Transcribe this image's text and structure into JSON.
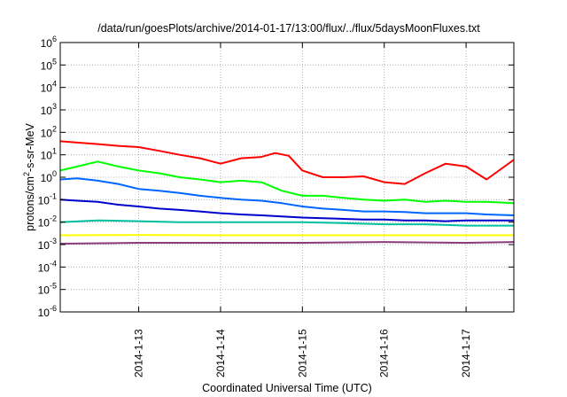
{
  "chart_data": {
    "type": "line",
    "title": "/data/run/goesPlots/archive/2014-01-17/13:00/flux/../flux/5daysMoonFluxes.txt",
    "xlabel": "Coordinated Universal Time (UTC)",
    "ylabel": "protons/cm²-s-sr-MeV",
    "ylabel_parts": {
      "a": "protons/cm",
      "sup": "2",
      "b": "-s-sr-MeV"
    },
    "y_scale": "log",
    "ylim": [
      1e-06,
      1000000.0
    ],
    "y_ticks": [
      {
        "value": 1e-06,
        "base": "10",
        "exp": "-6"
      },
      {
        "value": 1e-05,
        "base": "10",
        "exp": "-5"
      },
      {
        "value": 0.0001,
        "base": "10",
        "exp": "-4"
      },
      {
        "value": 0.001,
        "base": "10",
        "exp": "-3"
      },
      {
        "value": 0.01,
        "base": "10",
        "exp": "-2"
      },
      {
        "value": 0.1,
        "base": "10",
        "exp": "-1"
      },
      {
        "value": 1.0,
        "base": "10",
        "exp": "0"
      },
      {
        "value": 10.0,
        "base": "10",
        "exp": "1"
      },
      {
        "value": 100.0,
        "base": "10",
        "exp": "2"
      },
      {
        "value": 1000.0,
        "base": "10",
        "exp": "3"
      },
      {
        "value": 10000.0,
        "base": "10",
        "exp": "4"
      },
      {
        "value": 100000.0,
        "base": "10",
        "exp": "5"
      },
      {
        "value": 1000000.0,
        "base": "10",
        "exp": "6"
      }
    ],
    "xlim": [
      "2014-01-12T01:00",
      "2014-01-17T14:00"
    ],
    "x_ticks": [
      {
        "value": "2014-01-13T00:00",
        "label": "2014-1-13"
      },
      {
        "value": "2014-01-14T00:00",
        "label": "2014-1-14"
      },
      {
        "value": "2014-01-15T00:00",
        "label": "2014-1-15"
      },
      {
        "value": "2014-01-16T00:00",
        "label": "2014-1-16"
      },
      {
        "value": "2014-01-17T00:00",
        "label": "2014-1-17"
      }
    ],
    "grid": true,
    "series": [
      {
        "color": "#ff0000",
        "x": [
          "2014-01-12T01:00",
          "2014-01-12T06:00",
          "2014-01-12T12:00",
          "2014-01-12T18:00",
          "2014-01-13T00:00",
          "2014-01-13T06:00",
          "2014-01-13T12:00",
          "2014-01-13T18:00",
          "2014-01-14T00:00",
          "2014-01-14T06:00",
          "2014-01-14T12:00",
          "2014-01-14T16:00",
          "2014-01-14T20:00",
          "2014-01-15T00:00",
          "2014-01-15T06:00",
          "2014-01-15T12:00",
          "2014-01-15T18:00",
          "2014-01-16T00:00",
          "2014-01-16T06:00",
          "2014-01-16T12:00",
          "2014-01-16T18:00",
          "2014-01-17T00:00",
          "2014-01-17T06:00",
          "2014-01-17T14:00"
        ],
        "values": [
          40,
          35,
          30,
          25,
          22,
          15,
          10,
          7,
          4,
          7,
          8,
          12,
          9,
          2,
          1,
          1,
          1.1,
          0.6,
          0.5,
          1.5,
          4,
          3,
          0.8,
          6
        ]
      },
      {
        "color": "#00ff00",
        "x": [
          "2014-01-12T01:00",
          "2014-01-12T06:00",
          "2014-01-12T12:00",
          "2014-01-12T18:00",
          "2014-01-13T00:00",
          "2014-01-13T06:00",
          "2014-01-13T12:00",
          "2014-01-13T18:00",
          "2014-01-14T00:00",
          "2014-01-14T06:00",
          "2014-01-14T12:00",
          "2014-01-14T18:00",
          "2014-01-15T00:00",
          "2014-01-15T06:00",
          "2014-01-15T12:00",
          "2014-01-15T18:00",
          "2014-01-16T00:00",
          "2014-01-16T06:00",
          "2014-01-16T12:00",
          "2014-01-16T18:00",
          "2014-01-17T00:00",
          "2014-01-17T06:00",
          "2014-01-17T14:00"
        ],
        "values": [
          2,
          3,
          5,
          3,
          2,
          1.5,
          1,
          0.8,
          0.6,
          0.7,
          0.6,
          0.25,
          0.15,
          0.15,
          0.12,
          0.1,
          0.09,
          0.1,
          0.08,
          0.09,
          0.08,
          0.08,
          0.07
        ]
      },
      {
        "color": "#0066ff",
        "x": [
          "2014-01-12T01:00",
          "2014-01-12T06:00",
          "2014-01-12T12:00",
          "2014-01-12T18:00",
          "2014-01-13T00:00",
          "2014-01-13T06:00",
          "2014-01-13T12:00",
          "2014-01-13T18:00",
          "2014-01-14T00:00",
          "2014-01-14T06:00",
          "2014-01-14T12:00",
          "2014-01-14T18:00",
          "2014-01-15T00:00",
          "2014-01-15T06:00",
          "2014-01-15T12:00",
          "2014-01-15T18:00",
          "2014-01-16T00:00",
          "2014-01-16T06:00",
          "2014-01-16T12:00",
          "2014-01-16T18:00",
          "2014-01-17T00:00",
          "2014-01-17T06:00",
          "2014-01-17T14:00"
        ],
        "values": [
          0.8,
          0.9,
          0.7,
          0.5,
          0.3,
          0.25,
          0.2,
          0.15,
          0.12,
          0.1,
          0.09,
          0.07,
          0.05,
          0.04,
          0.035,
          0.03,
          0.03,
          0.028,
          0.025,
          0.025,
          0.025,
          0.022,
          0.02
        ]
      },
      {
        "color": "#0000cc",
        "x": [
          "2014-01-12T01:00",
          "2014-01-12T06:00",
          "2014-01-12T12:00",
          "2014-01-12T18:00",
          "2014-01-13T00:00",
          "2014-01-13T06:00",
          "2014-01-13T12:00",
          "2014-01-13T18:00",
          "2014-01-14T00:00",
          "2014-01-14T06:00",
          "2014-01-14T12:00",
          "2014-01-14T18:00",
          "2014-01-15T00:00",
          "2014-01-15T06:00",
          "2014-01-15T12:00",
          "2014-01-15T18:00",
          "2014-01-16T00:00",
          "2014-01-16T06:00",
          "2014-01-16T12:00",
          "2014-01-16T18:00",
          "2014-01-17T00:00",
          "2014-01-17T06:00",
          "2014-01-17T14:00"
        ],
        "values": [
          0.1,
          0.09,
          0.08,
          0.06,
          0.05,
          0.04,
          0.035,
          0.03,
          0.025,
          0.022,
          0.02,
          0.018,
          0.016,
          0.015,
          0.014,
          0.013,
          0.013,
          0.012,
          0.012,
          0.011,
          0.012,
          0.012,
          0.012
        ]
      },
      {
        "color": "#00c0a0",
        "x": [
          "2014-01-12T01:00",
          "2014-01-12T12:00",
          "2014-01-13T00:00",
          "2014-01-13T12:00",
          "2014-01-14T00:00",
          "2014-01-14T12:00",
          "2014-01-15T00:00",
          "2014-01-15T12:00",
          "2014-01-16T00:00",
          "2014-01-16T12:00",
          "2014-01-17T00:00",
          "2014-01-17T14:00"
        ],
        "values": [
          0.01,
          0.012,
          0.011,
          0.01,
          0.01,
          0.01,
          0.01,
          0.009,
          0.008,
          0.008,
          0.007,
          0.007
        ]
      },
      {
        "color": "#ffff00",
        "x": [
          "2014-01-12T01:00",
          "2014-01-13T00:00",
          "2014-01-14T00:00",
          "2014-01-15T00:00",
          "2014-01-16T00:00",
          "2014-01-17T00:00",
          "2014-01-17T14:00"
        ],
        "values": [
          0.0026,
          0.0027,
          0.0026,
          0.0026,
          0.0026,
          0.0026,
          0.0026
        ]
      },
      {
        "color": "#8b3a7a",
        "x": [
          "2014-01-12T01:00",
          "2014-01-13T00:00",
          "2014-01-14T00:00",
          "2014-01-15T00:00",
          "2014-01-16T00:00",
          "2014-01-17T00:00",
          "2014-01-17T14:00"
        ],
        "values": [
          0.0011,
          0.0012,
          0.0012,
          0.0012,
          0.0013,
          0.0012,
          0.0013
        ]
      }
    ]
  }
}
